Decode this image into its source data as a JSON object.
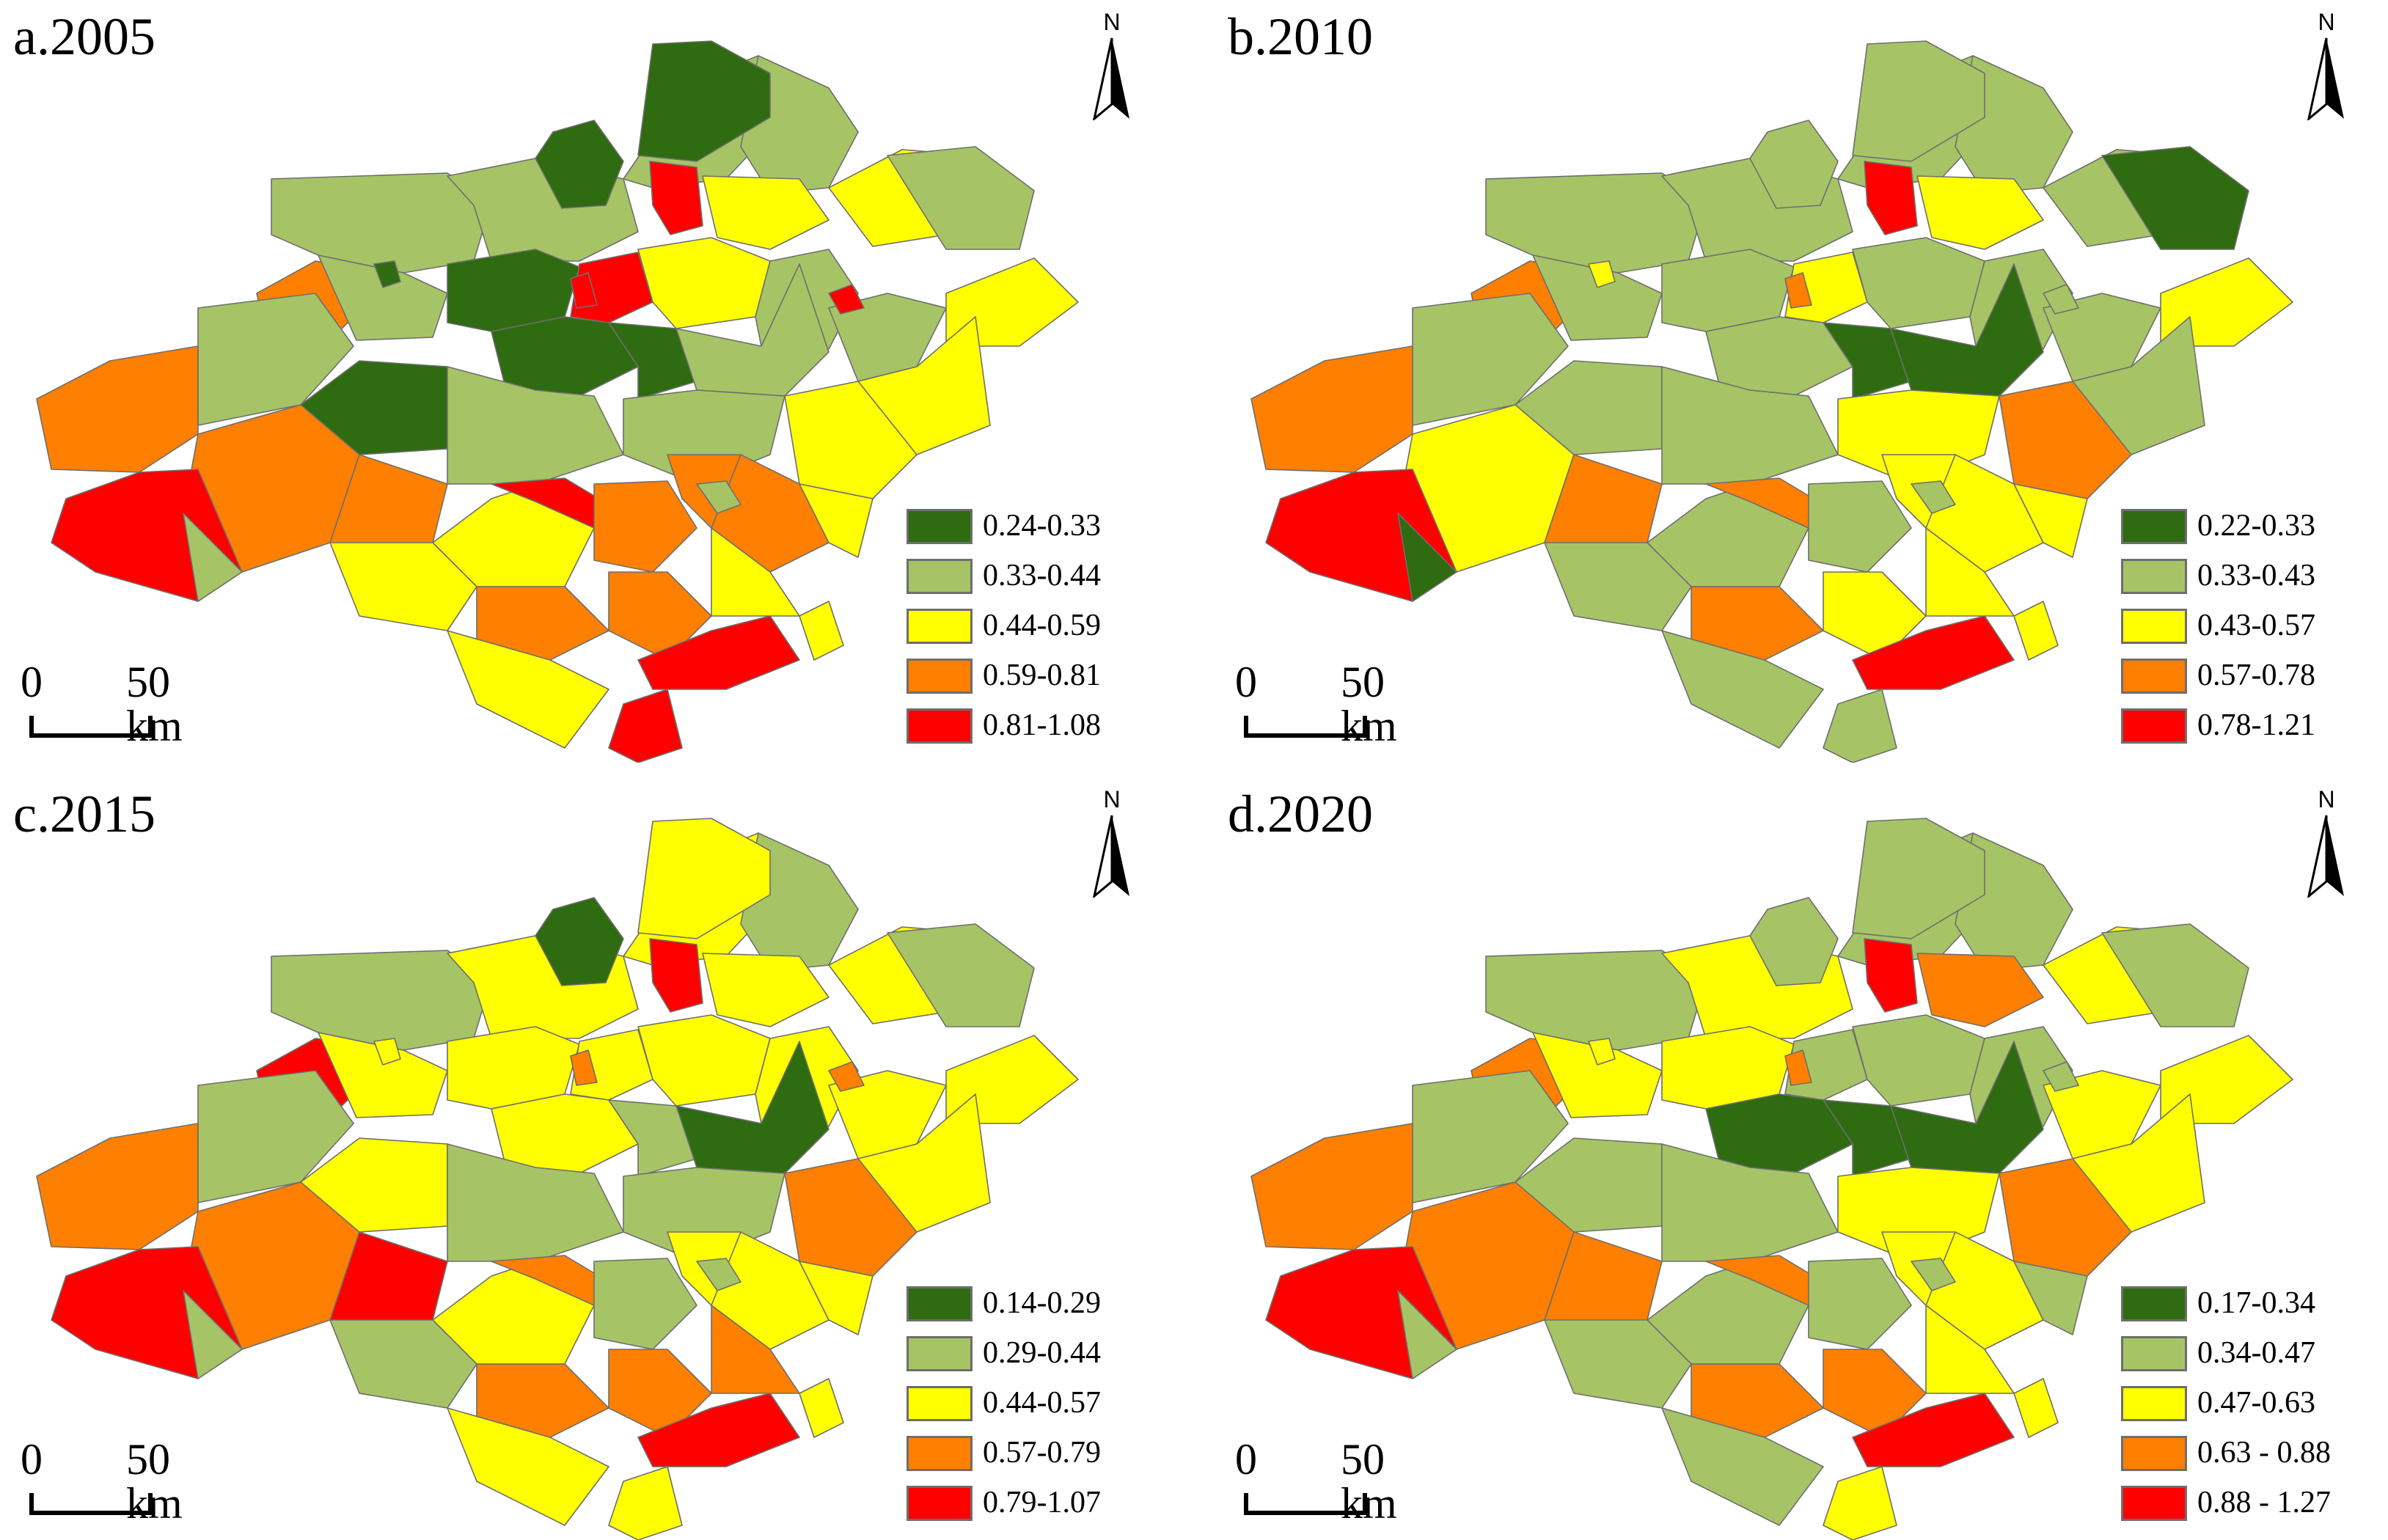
{
  "palette": {
    "class1": "#2f6b10",
    "class2": "#a6c465",
    "class3": "#ffff00",
    "class4": "#ff7f00",
    "class5": "#ff0000",
    "boundary": "#6e6e6e",
    "outline": "#5a5a5a"
  },
  "north_arrow": {
    "label": "N",
    "icon": "north-arrow-icon"
  },
  "scale_bar": {
    "start": "0",
    "end": "50 km"
  },
  "panels": [
    {
      "title": "a.2005",
      "legend": [
        "0.24-0.33",
        "0.33-0.44",
        "0.44-0.59",
        "0.59-0.81",
        "0.81-1.08"
      ],
      "regions": [
        2,
        2,
        2,
        2,
        1,
        1,
        4,
        5,
        3,
        3,
        2,
        2,
        1,
        5,
        5,
        3,
        2,
        1,
        1,
        2,
        2,
        3,
        3,
        2,
        4,
        1,
        2,
        2,
        3,
        4,
        4,
        5,
        3,
        5,
        4,
        4,
        4,
        3,
        3,
        4,
        4,
        5,
        3,
        3,
        2,
        3,
        5,
        2,
        1,
        5
      ]
    },
    {
      "title": "b.2010",
      "legend": [
        "0.22-0.33",
        "0.33-0.43",
        "0.43-0.57",
        "0.57-0.78",
        "0.78-1.21"
      ],
      "regions": [
        2,
        2,
        2,
        2,
        2,
        2,
        4,
        5,
        3,
        2,
        1,
        2,
        2,
        3,
        4,
        2,
        2,
        2,
        1,
        1,
        2,
        3,
        2,
        2,
        4,
        2,
        2,
        3,
        4,
        3,
        4,
        5,
        2,
        4,
        2,
        3,
        3,
        3,
        2,
        4,
        3,
        5,
        3,
        2,
        1,
        3,
        2,
        2,
        3,
        2
      ]
    },
    {
      "title": "c.2015",
      "legend": [
        "0.14-0.29",
        "0.29-0.44",
        "0.44-0.57",
        "0.57-0.79",
        "0.79-1.07"
      ],
      "regions": [
        2,
        3,
        3,
        2,
        3,
        1,
        5,
        5,
        3,
        3,
        2,
        3,
        3,
        3,
        4,
        3,
        3,
        3,
        2,
        1,
        3,
        3,
        3,
        2,
        4,
        3,
        2,
        2,
        4,
        4,
        5,
        5,
        3,
        4,
        2,
        3,
        3,
        3,
        2,
        4,
        4,
        5,
        4,
        3,
        2,
        3,
        3,
        2,
        3,
        4
      ]
    },
    {
      "title": "d.2020",
      "legend": [
        "0.17-0.34",
        "0.34-0.47",
        "0.47-0.63",
        "0.63 - 0.88",
        "0.88 - 1.27"
      ],
      "regions": [
        2,
        3,
        2,
        2,
        2,
        2,
        4,
        5,
        4,
        3,
        2,
        3,
        3,
        2,
        4,
        2,
        2,
        1,
        1,
        1,
        3,
        3,
        3,
        2,
        4,
        2,
        2,
        3,
        4,
        4,
        4,
        5,
        2,
        4,
        2,
        3,
        3,
        2,
        2,
        4,
        4,
        5,
        3,
        2,
        2,
        3,
        3,
        2,
        3,
        2
      ]
    }
  ]
}
